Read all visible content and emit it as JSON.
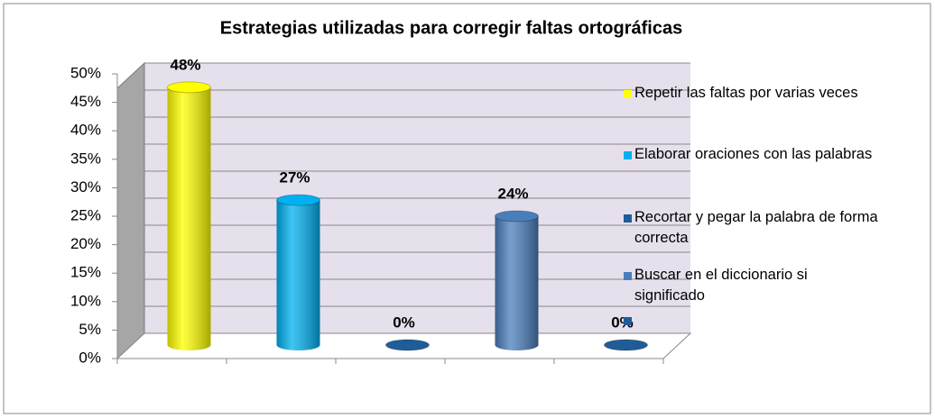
{
  "chart_data": {
    "type": "bar",
    "title": "Estrategias utilizadas para corregir faltas ortográficas",
    "categories": [
      "Repetir las faltas por varias veces",
      "Elaborar oraciones con las palabras",
      "Recortar y pegar la palabra de forma correcta",
      "Buscar en el diccionario si significado",
      null
    ],
    "values": [
      48,
      27,
      0,
      24,
      0
    ],
    "value_labels": [
      "48%",
      "27%",
      "0%",
      "24%",
      "0%"
    ],
    "colors": [
      "#ffff00",
      "#00b0f0",
      "#1f5c99",
      "#4a7ebb",
      "#1f5c99"
    ],
    "ylim": [
      0,
      50
    ],
    "yticks": [
      {
        "value": 0,
        "label": "0%"
      },
      {
        "value": 5,
        "label": "5%"
      },
      {
        "value": 10,
        "label": "10%"
      },
      {
        "value": 15,
        "label": "15%"
      },
      {
        "value": 20,
        "label": "20%"
      },
      {
        "value": 25,
        "label": "25%"
      },
      {
        "value": 30,
        "label": "30%"
      },
      {
        "value": 35,
        "label": "35%"
      },
      {
        "value": 40,
        "label": "40%"
      },
      {
        "value": 45,
        "label": "45%"
      },
      {
        "value": 50,
        "label": "50%"
      }
    ],
    "grid": true,
    "legend": "right"
  }
}
